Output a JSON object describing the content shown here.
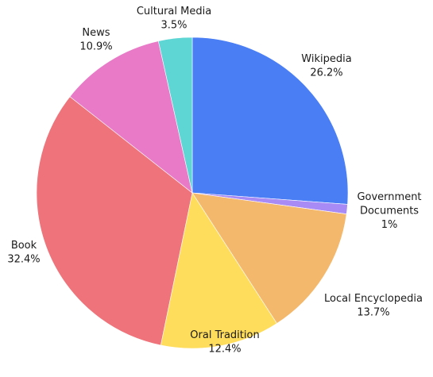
{
  "chart_data": {
    "type": "pie",
    "title": "",
    "categories": [
      "Wikipedia",
      "Government Documents",
      "Local Encyclopedia",
      "Oral Tradition",
      "Book",
      "News",
      "Cultural Media"
    ],
    "values": [
      26.2,
      1.0,
      13.7,
      12.4,
      32.4,
      10.9,
      3.5
    ],
    "labels": [
      {
        "name": [
          "Wikipedia"
        ],
        "pct": "26.2%"
      },
      {
        "name": [
          "Government",
          "Documents"
        ],
        "pct": "1%"
      },
      {
        "name": [
          "Local Encyclopedia"
        ],
        "pct": "13.7%"
      },
      {
        "name": [
          "Oral Tradition"
        ],
        "pct": "12.4%"
      },
      {
        "name": [
          "Book"
        ],
        "pct": "32.4%"
      },
      {
        "name": [
          "News"
        ],
        "pct": "10.9%"
      },
      {
        "name": [
          "Cultural Media"
        ],
        "pct": "3.5%"
      }
    ],
    "colors": [
      "#4a7ef5",
      "#a98bf5",
      "#f3b86c",
      "#fedc5c",
      "#ef737a",
      "#e87ac8",
      "#5dd6d4"
    ],
    "start": "12 o'clock",
    "direction": "clockwise",
    "legend": "none"
  }
}
